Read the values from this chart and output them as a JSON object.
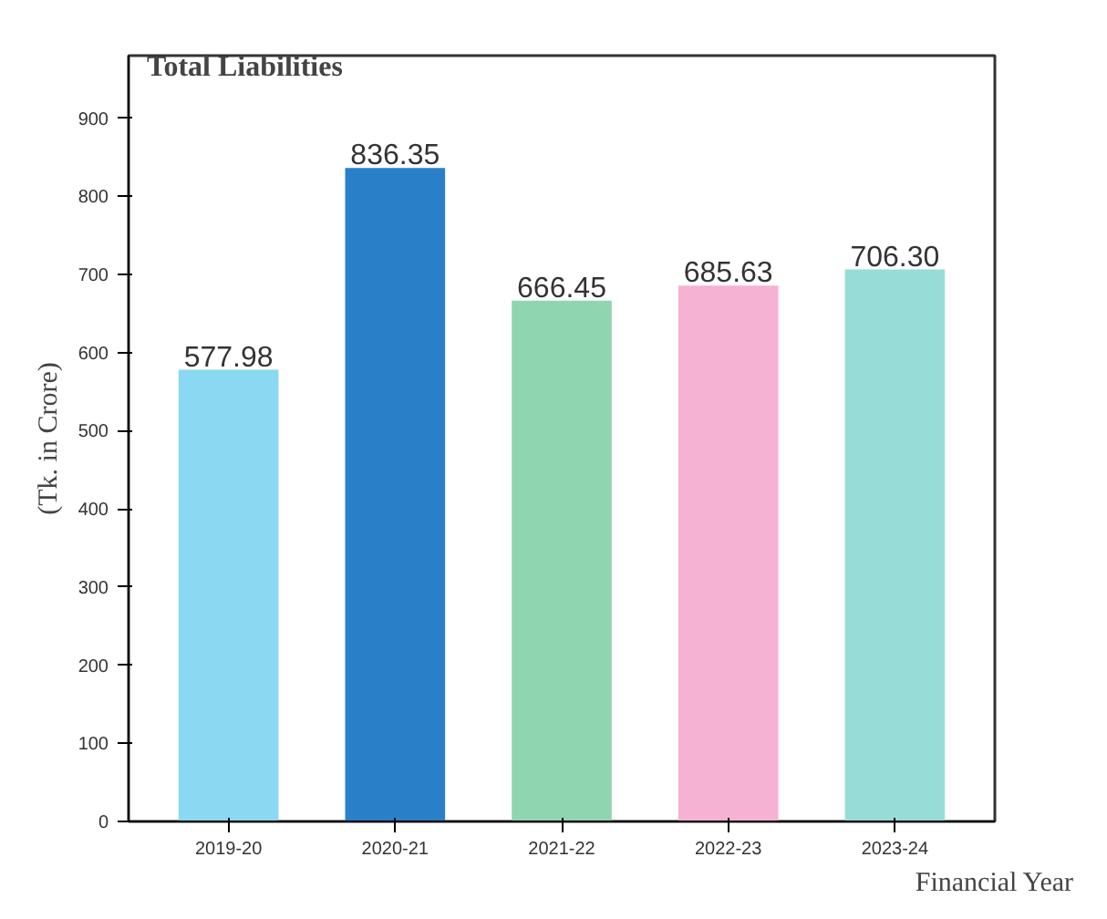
{
  "chart_data": {
    "type": "bar",
    "title": "Total Liabilities",
    "ylabel": "(Tk. in Crore)",
    "xlabel": "Financial Year",
    "categories": [
      "2019-20",
      "2020-21",
      "2021-22",
      "2022-23",
      "2023-24"
    ],
    "values": [
      577.98,
      836.35,
      666.45,
      685.63,
      706.3
    ],
    "value_labels": [
      "577.98",
      "836.35",
      "666.45",
      "685.63",
      "706.30"
    ],
    "colors": [
      "#8ad8f2",
      "#2a80c8",
      "#8fd6b0",
      "#f6b2d2",
      "#98dcd8"
    ],
    "ylim": [
      0,
      980
    ],
    "yticks": [
      0,
      100,
      200,
      300,
      400,
      500,
      600,
      700,
      800,
      900
    ],
    "grid": false
  }
}
